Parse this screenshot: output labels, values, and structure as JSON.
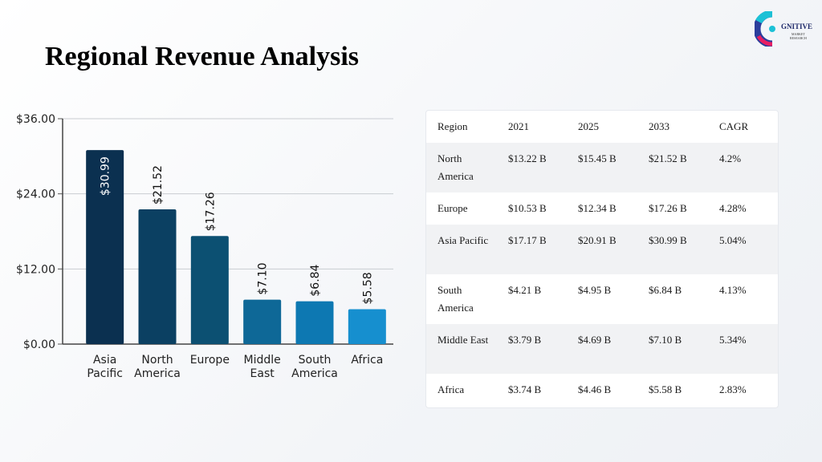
{
  "slide": {
    "title": "Regional Revenue Analysis"
  },
  "logo": {
    "icon": "cognitive-market-research-logo",
    "text_main": "GNITIVE",
    "text_sub1": "MARKET",
    "text_sub2": "RESEARCH",
    "colors": [
      "#1cc1d6",
      "#2b3d9c",
      "#e91e63"
    ]
  },
  "chart_data": {
    "type": "bar",
    "categories": [
      [
        "Asia",
        "Pacific"
      ],
      [
        "North",
        "America"
      ],
      [
        "Europe"
      ],
      [
        "Middle",
        "East"
      ],
      [
        "South",
        "America"
      ],
      [
        "Africa"
      ]
    ],
    "values": [
      30.99,
      21.52,
      17.26,
      7.1,
      6.84,
      5.58
    ],
    "data_labels": [
      "$30.99",
      "$21.52",
      "$17.26",
      "$7.10",
      "$6.84",
      "$5.58"
    ],
    "yticks": [
      0,
      12,
      24,
      36
    ],
    "ytick_labels": [
      "$0.00",
      "$12.00",
      "$24.00",
      "$36.00"
    ],
    "ylim": [
      0,
      36
    ],
    "grid": true,
    "title": "",
    "xlabel": "",
    "ylabel": "",
    "bar_colors": [
      "#0b3050",
      "#0b4062",
      "#0c5072",
      "#0e6897",
      "#0d78b2",
      "#168fcf"
    ]
  },
  "table": {
    "headers": [
      "Region",
      "2021",
      "2025",
      "2033",
      "CAGR"
    ],
    "rows": [
      [
        "North America",
        "$13.22 B",
        "$15.45 B",
        "$21.52 B",
        "4.2%"
      ],
      [
        "Europe",
        "$10.53 B",
        "$12.34 B",
        "$17.26 B",
        "4.28%"
      ],
      [
        "Asia Pacific",
        "$17.17 B",
        "$20.91 B",
        "$30.99 B",
        "5.04%"
      ],
      [
        "South America",
        "$4.21 B",
        "$4.95 B",
        "$6.84 B",
        "4.13%"
      ],
      [
        "Middle East",
        "$3.79 B",
        "$4.69 B",
        "$7.10 B",
        "5.34%"
      ],
      [
        "Africa",
        "$3.74 B",
        "$4.46 B",
        "$5.58 B",
        "2.83%"
      ]
    ]
  }
}
